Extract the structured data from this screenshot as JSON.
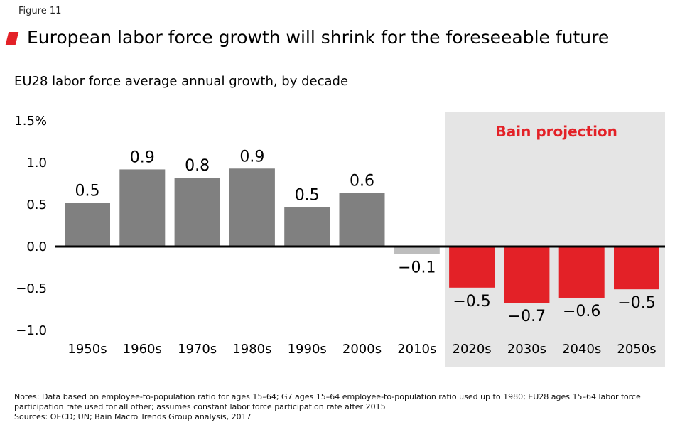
{
  "figure_label": "Figure 11",
  "title": "European labor force growth will shrink for the foreseeable future",
  "subtitle": "EU28 labor force average annual growth, by decade",
  "projection_label": "Bain projection",
  "notes": "Notes: Data based on employee-to-population ratio for ages 15–64; G7 ages 15–64 employee-to-population ratio used up to 1980; EU28 ages 15–64 labor force participation rate used for all other; assumes constant labor force participation rate after 2015",
  "sources": "Sources: OECD; UN; Bain Macro Trends Group analysis, 2017",
  "colors": {
    "historical": "#808080",
    "recent": "#bdbdbd",
    "projection": "#e32127",
    "projection_bg": "#e5e5e5",
    "title_mark": "#e32127"
  },
  "chart_data": {
    "type": "bar",
    "title": "European labor force growth will shrink for the foreseeable future",
    "ylabel": "",
    "xlabel": "",
    "ylim": [
      -1.0,
      1.5
    ],
    "yticks": [
      1.5,
      1.0,
      0.5,
      0.0,
      -0.5,
      -1.0
    ],
    "ytick_labels": [
      "1.5%",
      "1.0",
      "0.5",
      "0.0",
      "−0.5",
      "−1.0"
    ],
    "grid": false,
    "categories": [
      "1950s",
      "1960s",
      "1970s",
      "1980s",
      "1990s",
      "2000s",
      "2010s",
      "2020s",
      "2030s",
      "2040s",
      "2050s"
    ],
    "values": [
      0.52,
      0.92,
      0.82,
      0.93,
      0.47,
      0.64,
      -0.09,
      -0.49,
      -0.67,
      -0.61,
      -0.51
    ],
    "data_labels": [
      "0.5",
      "0.9",
      "0.8",
      "0.9",
      "0.5",
      "0.6",
      "−0.1",
      "−0.5",
      "−0.7",
      "−0.6",
      "−0.5"
    ],
    "bar_kind": [
      "historical",
      "historical",
      "historical",
      "historical",
      "historical",
      "historical",
      "recent",
      "projection",
      "projection",
      "projection",
      "projection"
    ],
    "projection_start_index": 7
  }
}
